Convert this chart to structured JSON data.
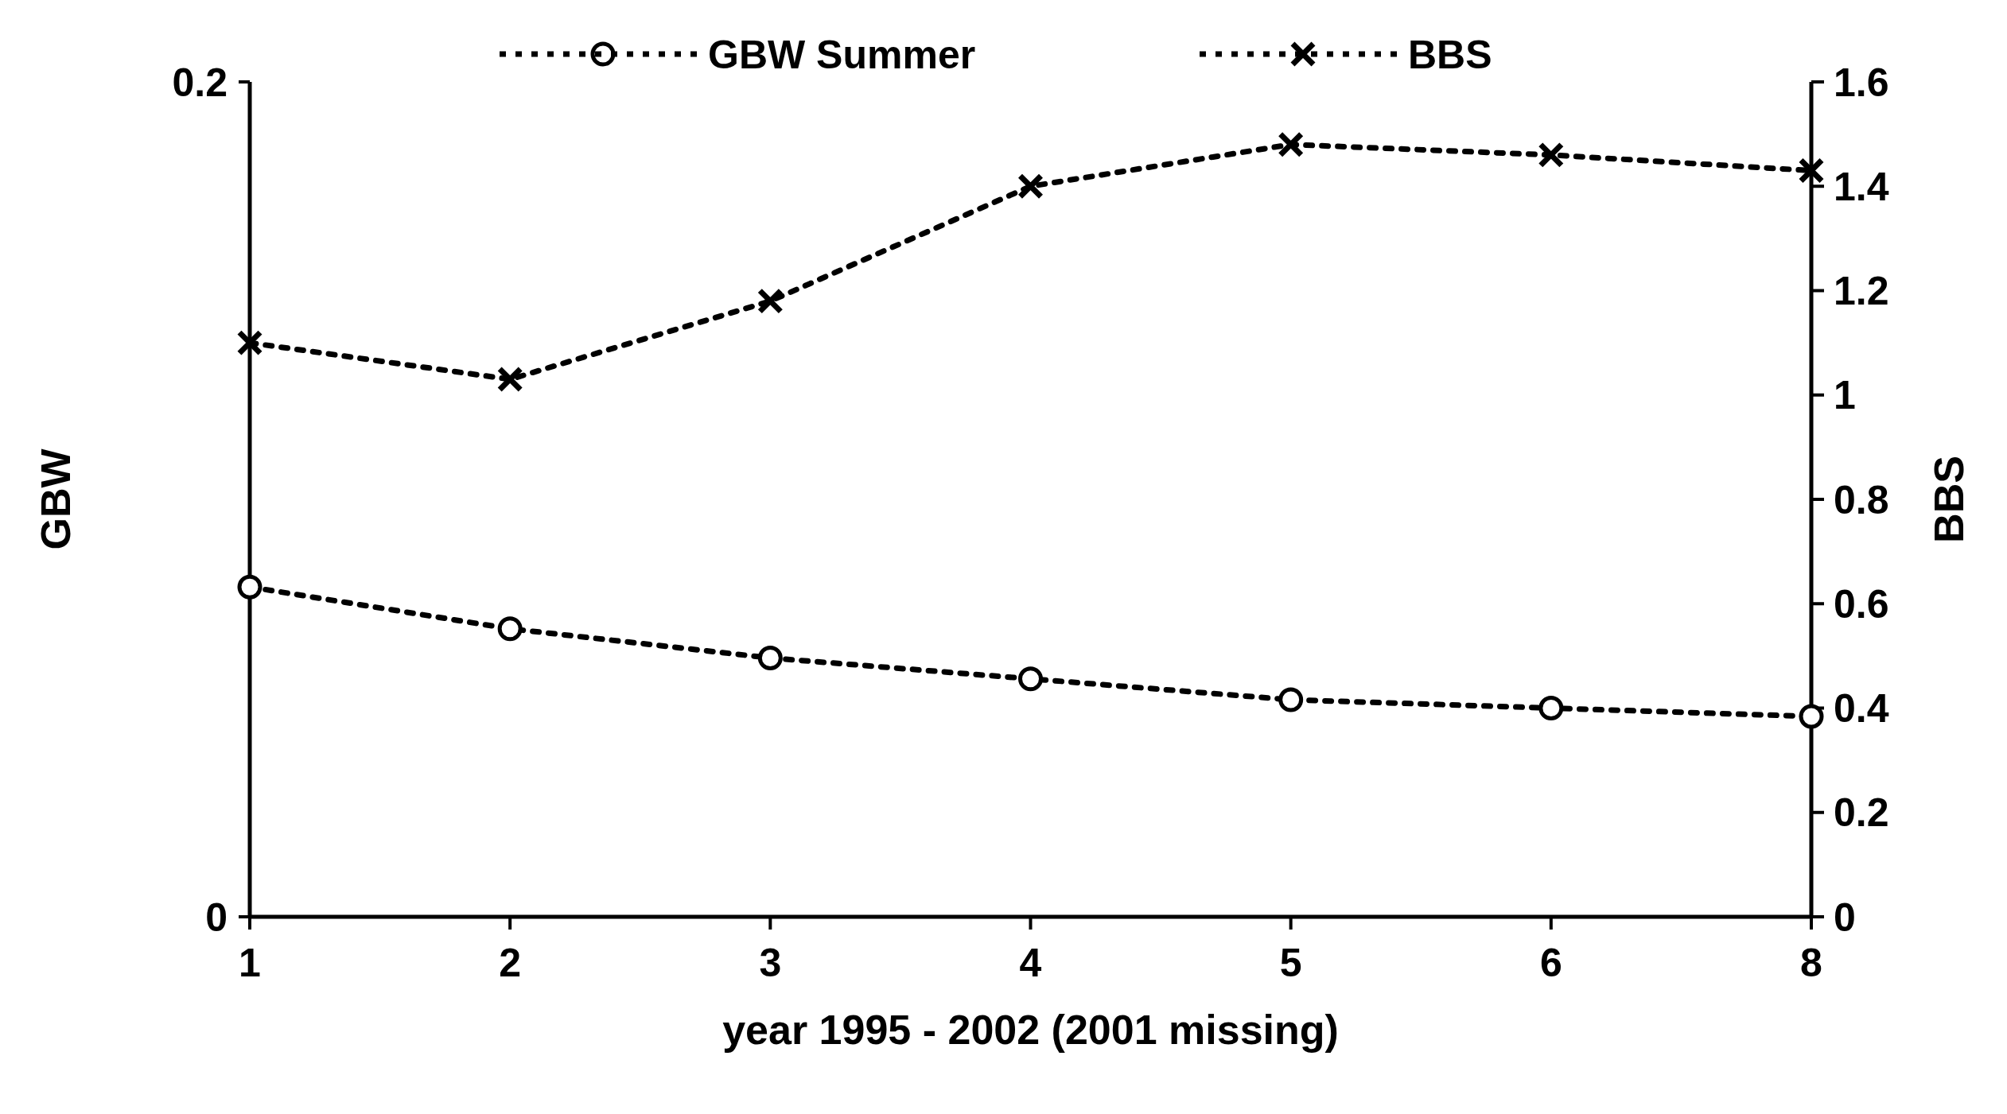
{
  "chart_data": {
    "type": "line",
    "xlabel": "year 1995 - 2002 (2001 missing)",
    "ylabel": "GBW",
    "y2label": "BBS",
    "categories": [
      "1",
      "2",
      "3",
      "4",
      "5",
      "6",
      "8"
    ],
    "series": [
      {
        "name": "GBW Summer",
        "color": "#000000",
        "marker": "circle",
        "values": [
          0.079,
          0.069,
          0.062,
          0.057,
          0.052,
          0.05,
          0.048
        ]
      },
      {
        "name": "BBS",
        "color": "#000000",
        "marker": "cross",
        "axis": "y2",
        "values": [
          1.1,
          1.03,
          1.18,
          1.4,
          1.48,
          1.46,
          1.43
        ]
      }
    ],
    "ylim": [
      0,
      0.2
    ],
    "yticks": [
      0,
      0.2
    ],
    "y2lim": [
      0,
      1.6
    ],
    "y2ticks": [
      0,
      0.2,
      0.4,
      0.6,
      0.8,
      1,
      1.2,
      1.4,
      1.6
    ],
    "line_style": "dotted",
    "legend": "top",
    "grid": false
  }
}
